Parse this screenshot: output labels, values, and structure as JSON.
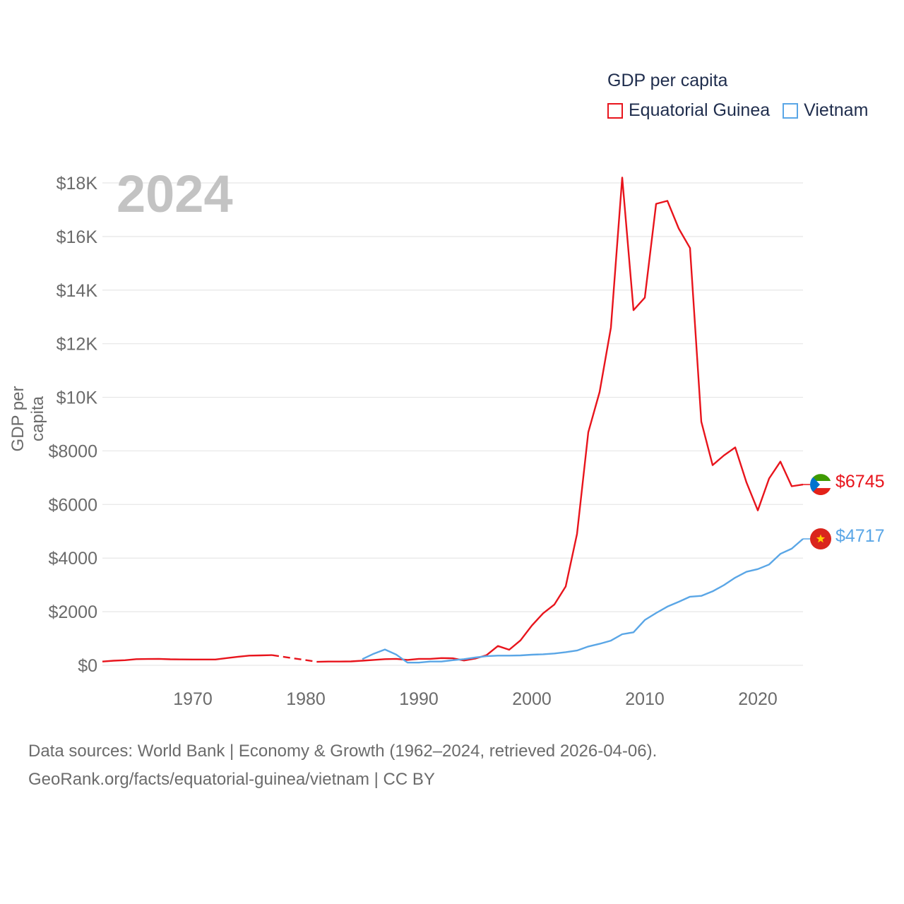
{
  "legend": {
    "title": "GDP per capita",
    "items": [
      {
        "name": "Equatorial Guinea",
        "color": "#e8141c"
      },
      {
        "name": "Vietnam",
        "color": "#5aa6e6"
      }
    ]
  },
  "year_badge": "2024",
  "footer": {
    "line1": "Data sources: World Bank | Economy & Growth (1962–2024, retrieved 2026-04-06).",
    "line2": "GeoRank.org/facts/equatorial-guinea/vietnam | CC BY"
  },
  "end_labels": {
    "equatorial_guinea": "$6745",
    "vietnam": "$4717"
  },
  "chart_data": {
    "type": "line",
    "title": "GDP per capita",
    "xlabel": "",
    "ylabel": "GDP per capita",
    "xlim": [
      1962,
      2024
    ],
    "ylim": [
      0,
      18000
    ],
    "x_ticks": [
      1970,
      1980,
      1990,
      2000,
      2010,
      2020
    ],
    "y_ticks": [
      {
        "value": 0,
        "label": "$0"
      },
      {
        "value": 2000,
        "label": "$2000"
      },
      {
        "value": 4000,
        "label": "$4000"
      },
      {
        "value": 6000,
        "label": "$6000"
      },
      {
        "value": 8000,
        "label": "$8000"
      },
      {
        "value": 10000,
        "label": "$10K"
      },
      {
        "value": 12000,
        "label": "$12K"
      },
      {
        "value": 14000,
        "label": "$14K"
      },
      {
        "value": 16000,
        "label": "$16K"
      },
      {
        "value": 18000,
        "label": "$18K"
      }
    ],
    "series": [
      {
        "name": "Equatorial Guinea",
        "color": "#e8141c",
        "gap": [
          1977,
          1981
        ],
        "points": [
          [
            1962,
            140
          ],
          [
            1963,
            170
          ],
          [
            1964,
            190
          ],
          [
            1965,
            230
          ],
          [
            1966,
            235
          ],
          [
            1967,
            240
          ],
          [
            1968,
            225
          ],
          [
            1969,
            220
          ],
          [
            1970,
            215
          ],
          [
            1971,
            215
          ],
          [
            1972,
            215
          ],
          [
            1973,
            270
          ],
          [
            1974,
            320
          ],
          [
            1975,
            360
          ],
          [
            1976,
            370
          ],
          [
            1977,
            380
          ],
          [
            1981,
            130
          ],
          [
            1982,
            140
          ],
          [
            1983,
            140
          ],
          [
            1984,
            145
          ],
          [
            1985,
            170
          ],
          [
            1986,
            200
          ],
          [
            1987,
            230
          ],
          [
            1988,
            240
          ],
          [
            1989,
            200
          ],
          [
            1990,
            240
          ],
          [
            1991,
            240
          ],
          [
            1992,
            270
          ],
          [
            1993,
            260
          ],
          [
            1994,
            180
          ],
          [
            1995,
            250
          ],
          [
            1996,
            380
          ],
          [
            1997,
            720
          ],
          [
            1998,
            580
          ],
          [
            1999,
            930
          ],
          [
            2000,
            1480
          ],
          [
            2001,
            1940
          ],
          [
            2002,
            2270
          ],
          [
            2003,
            2940
          ],
          [
            2004,
            4900
          ],
          [
            2005,
            8700
          ],
          [
            2006,
            10200
          ],
          [
            2007,
            12600
          ],
          [
            2008,
            18200
          ],
          [
            2009,
            13250
          ],
          [
            2010,
            13720
          ],
          [
            2011,
            17220
          ],
          [
            2012,
            17330
          ],
          [
            2013,
            16300
          ],
          [
            2014,
            15570
          ],
          [
            2015,
            9090
          ],
          [
            2016,
            7470
          ],
          [
            2017,
            7830
          ],
          [
            2018,
            8130
          ],
          [
            2019,
            6820
          ],
          [
            2020,
            5780
          ],
          [
            2021,
            6970
          ],
          [
            2022,
            7600
          ],
          [
            2023,
            6680
          ],
          [
            2024,
            6745
          ]
        ]
      },
      {
        "name": "Vietnam",
        "color": "#5aa6e6",
        "points": [
          [
            1985,
            230
          ],
          [
            1986,
            430
          ],
          [
            1987,
            590
          ],
          [
            1988,
            400
          ],
          [
            1989,
            100
          ],
          [
            1990,
            100
          ],
          [
            1991,
            140
          ],
          [
            1992,
            140
          ],
          [
            1993,
            190
          ],
          [
            1994,
            230
          ],
          [
            1995,
            290
          ],
          [
            1996,
            340
          ],
          [
            1997,
            360
          ],
          [
            1998,
            360
          ],
          [
            1999,
            370
          ],
          [
            2000,
            395
          ],
          [
            2001,
            410
          ],
          [
            2002,
            440
          ],
          [
            2003,
            490
          ],
          [
            2004,
            550
          ],
          [
            2005,
            700
          ],
          [
            2006,
            800
          ],
          [
            2007,
            920
          ],
          [
            2008,
            1160
          ],
          [
            2009,
            1230
          ],
          [
            2010,
            1690
          ],
          [
            2011,
            1950
          ],
          [
            2012,
            2190
          ],
          [
            2013,
            2370
          ],
          [
            2014,
            2560
          ],
          [
            2015,
            2590
          ],
          [
            2016,
            2760
          ],
          [
            2017,
            2990
          ],
          [
            2018,
            3270
          ],
          [
            2019,
            3490
          ],
          [
            2020,
            3590
          ],
          [
            2021,
            3760
          ],
          [
            2022,
            4160
          ],
          [
            2023,
            4350
          ],
          [
            2024,
            4717
          ]
        ]
      }
    ]
  }
}
